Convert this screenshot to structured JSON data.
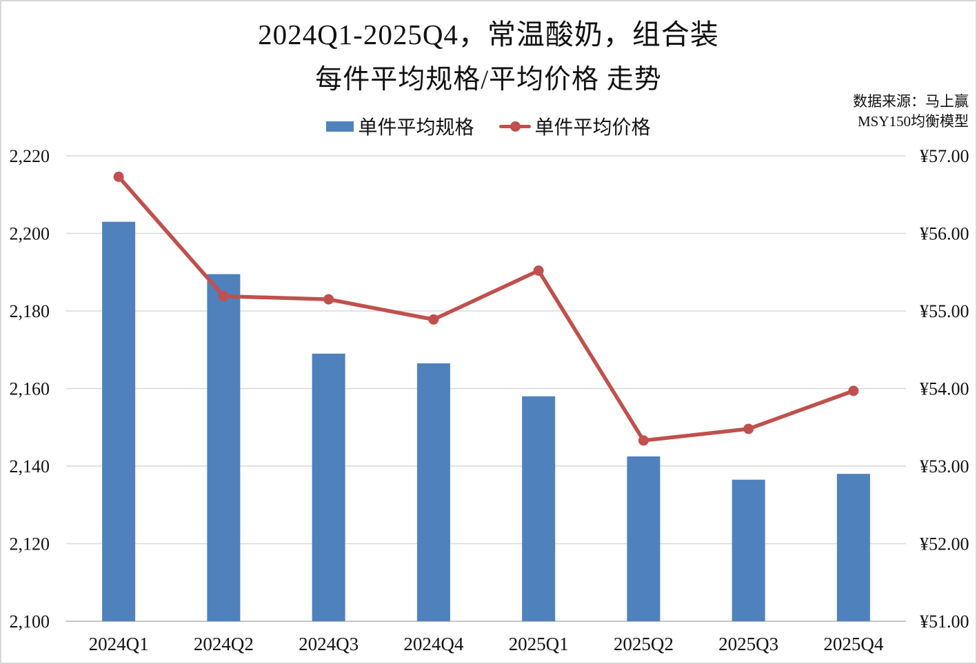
{
  "page": {
    "title_line1": "2024Q1-2025Q4，常温酸奶，组合装",
    "title_line2": "每件平均规格/平均价格 走势",
    "source_line1": "数据来源：马上赢",
    "source_line2": "MSY150均衡模型"
  },
  "legend": {
    "bar_label": "单件平均规格",
    "line_label": "单件平均价格"
  },
  "colors": {
    "bar": "#4F81BD",
    "line": "#C0504D",
    "grid": "#D9D9D9",
    "axis": "#C6C6C6",
    "text": "#111111"
  },
  "chart_data": {
    "type": "combo-bar-line",
    "title": "2024Q1-2025Q4，常温酸奶，组合装 每件平均规格/平均价格 走势",
    "categories": [
      "2024Q1",
      "2024Q2",
      "2024Q3",
      "2024Q4",
      "2025Q1",
      "2025Q2",
      "2025Q3",
      "2025Q4"
    ],
    "series": [
      {
        "name": "单件平均规格",
        "type": "bar",
        "axis": "left",
        "values": [
          2203,
          2189.5,
          2169,
          2166.5,
          2158,
          2142.5,
          2136.5,
          2138
        ]
      },
      {
        "name": "单件平均价格",
        "type": "line",
        "axis": "right",
        "values": [
          56.73,
          55.19,
          55.15,
          54.89,
          55.52,
          53.33,
          53.48,
          53.97
        ]
      }
    ],
    "left_axis": {
      "min": 2100,
      "max": 2220,
      "step": 20,
      "tick_labels": [
        "2,100",
        "2,120",
        "2,140",
        "2,160",
        "2,180",
        "2,200",
        "2,220"
      ]
    },
    "right_axis": {
      "min": 51,
      "max": 57,
      "step": 1,
      "tick_labels": [
        "¥51.00",
        "¥52.00",
        "¥53.00",
        "¥54.00",
        "¥55.00",
        "¥56.00",
        "¥57.00"
      ]
    },
    "grid": true,
    "legend_position": "top-center"
  }
}
